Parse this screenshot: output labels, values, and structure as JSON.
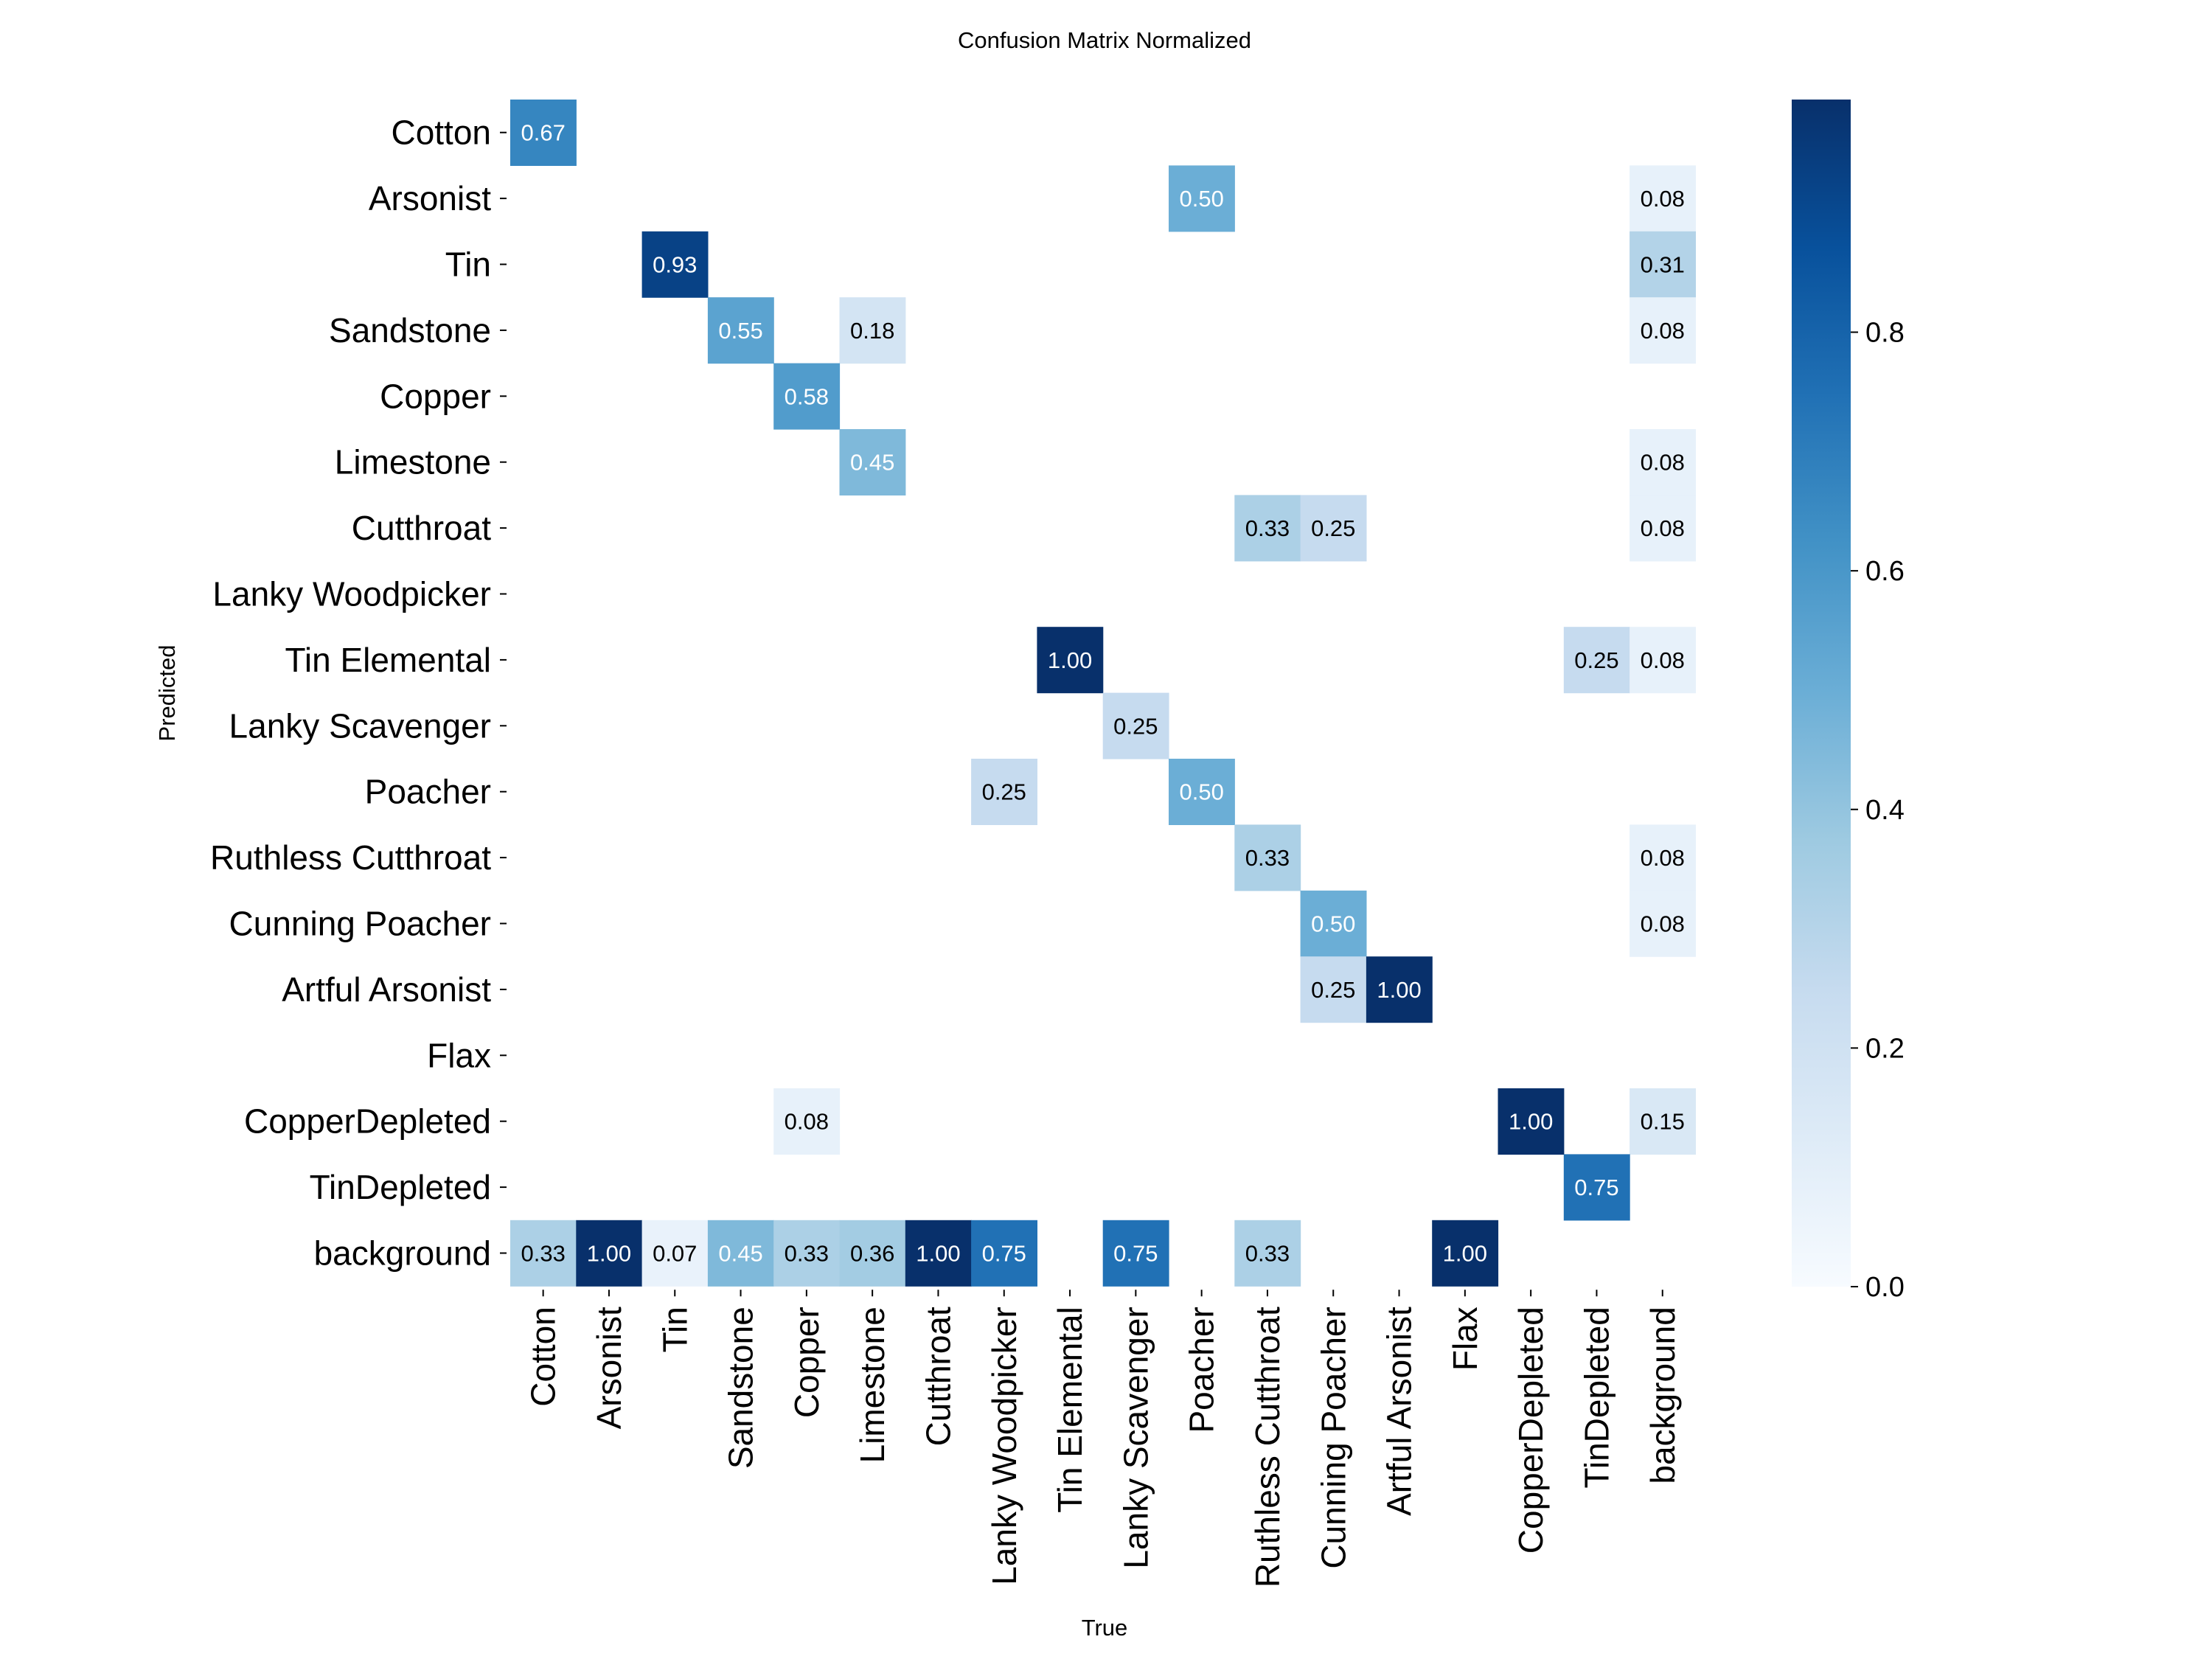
{
  "chart_data": {
    "type": "heatmap",
    "title": "Confusion Matrix Normalized",
    "xlabel": "True",
    "ylabel": "Predicted",
    "x_categories": [
      "Cotton",
      "Arsonist",
      "Tin",
      "Sandstone",
      "Copper",
      "Limestone",
      "Cutthroat",
      "Lanky Woodpicker",
      "Tin Elemental",
      "Lanky Scavenger",
      "Poacher",
      "Ruthless Cutthroat",
      "Cunning Poacher",
      "Artful Arsonist",
      "Flax",
      "CopperDepleted",
      "TinDepleted",
      "background"
    ],
    "y_categories": [
      "Cotton",
      "Arsonist",
      "Tin",
      "Sandstone",
      "Copper",
      "Limestone",
      "Cutthroat",
      "Lanky Woodpicker",
      "Tin Elemental",
      "Lanky Scavenger",
      "Poacher",
      "Ruthless Cutthroat",
      "Cunning Poacher",
      "Artful Arsonist",
      "Flax",
      "CopperDepleted",
      "TinDepleted",
      "background"
    ],
    "matrix": [
      [
        0.67,
        null,
        null,
        null,
        null,
        null,
        null,
        null,
        null,
        null,
        null,
        null,
        null,
        null,
        null,
        null,
        null,
        null
      ],
      [
        null,
        null,
        null,
        null,
        null,
        null,
        null,
        null,
        null,
        null,
        0.5,
        null,
        null,
        null,
        null,
        null,
        null,
        0.08
      ],
      [
        null,
        null,
        0.93,
        null,
        null,
        null,
        null,
        null,
        null,
        null,
        null,
        null,
        null,
        null,
        null,
        null,
        null,
        0.31
      ],
      [
        null,
        null,
        null,
        0.55,
        null,
        0.18,
        null,
        null,
        null,
        null,
        null,
        null,
        null,
        null,
        null,
        null,
        null,
        0.08
      ],
      [
        null,
        null,
        null,
        null,
        0.58,
        null,
        null,
        null,
        null,
        null,
        null,
        null,
        null,
        null,
        null,
        null,
        null,
        null
      ],
      [
        null,
        null,
        null,
        null,
        null,
        0.45,
        null,
        null,
        null,
        null,
        null,
        null,
        null,
        null,
        null,
        null,
        null,
        0.08
      ],
      [
        null,
        null,
        null,
        null,
        null,
        null,
        null,
        null,
        null,
        null,
        null,
        0.33,
        0.25,
        null,
        null,
        null,
        null,
        0.08
      ],
      [
        null,
        null,
        null,
        null,
        null,
        null,
        null,
        null,
        null,
        null,
        null,
        null,
        null,
        null,
        null,
        null,
        null,
        null
      ],
      [
        null,
        null,
        null,
        null,
        null,
        null,
        null,
        null,
        1.0,
        null,
        null,
        null,
        null,
        null,
        null,
        null,
        0.25,
        0.08
      ],
      [
        null,
        null,
        null,
        null,
        null,
        null,
        null,
        null,
        null,
        0.25,
        null,
        null,
        null,
        null,
        null,
        null,
        null,
        null
      ],
      [
        null,
        null,
        null,
        null,
        null,
        null,
        null,
        0.25,
        null,
        null,
        0.5,
        null,
        null,
        null,
        null,
        null,
        null,
        null
      ],
      [
        null,
        null,
        null,
        null,
        null,
        null,
        null,
        null,
        null,
        null,
        null,
        0.33,
        null,
        null,
        null,
        null,
        null,
        0.08
      ],
      [
        null,
        null,
        null,
        null,
        null,
        null,
        null,
        null,
        null,
        null,
        null,
        null,
        0.5,
        null,
        null,
        null,
        null,
        0.08
      ],
      [
        null,
        null,
        null,
        null,
        null,
        null,
        null,
        null,
        null,
        null,
        null,
        null,
        0.25,
        1.0,
        null,
        null,
        null,
        null
      ],
      [
        null,
        null,
        null,
        null,
        null,
        null,
        null,
        null,
        null,
        null,
        null,
        null,
        null,
        null,
        null,
        null,
        null,
        null
      ],
      [
        null,
        null,
        null,
        null,
        0.08,
        null,
        null,
        null,
        null,
        null,
        null,
        null,
        null,
        null,
        null,
        1.0,
        null,
        0.15
      ],
      [
        null,
        null,
        null,
        null,
        null,
        null,
        null,
        null,
        null,
        null,
        null,
        null,
        null,
        null,
        null,
        null,
        0.75,
        null
      ],
      [
        0.33,
        1.0,
        0.07,
        0.45,
        0.33,
        0.36,
        1.0,
        0.75,
        null,
        0.75,
        null,
        0.33,
        null,
        null,
        1.0,
        null,
        null,
        null
      ]
    ],
    "value_range": [
      0,
      1
    ],
    "colorbar_ticks": [
      "0.0",
      "0.2",
      "0.4",
      "0.6",
      "0.8"
    ],
    "colormap": "Blues",
    "grid": false,
    "legend": "colorbar-right"
  },
  "colors": {
    "cmap_low": "#f7fbff",
    "cmap_high": "#08306b",
    "text_dark": "#000000",
    "text_light": "#ffffff"
  }
}
